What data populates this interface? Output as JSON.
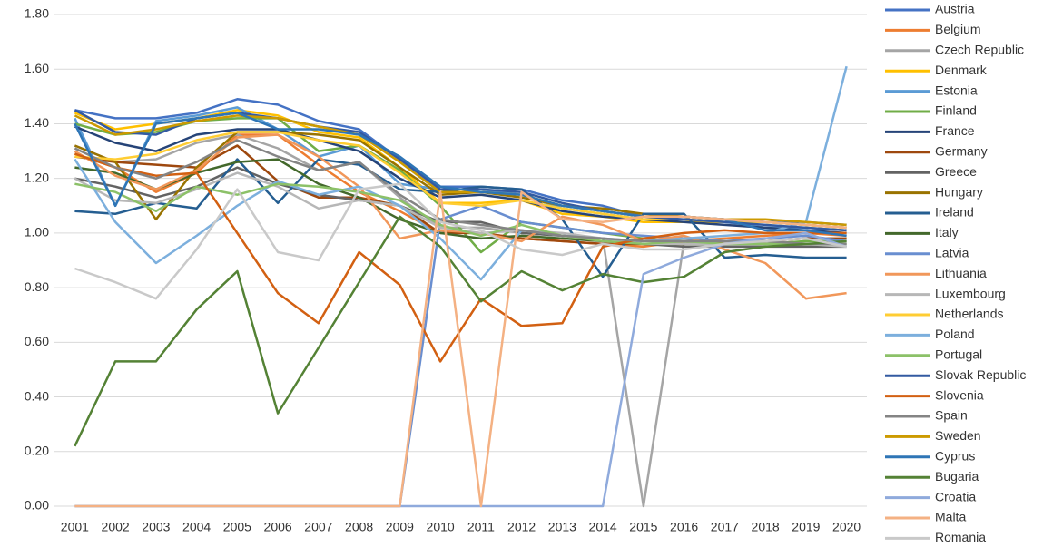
{
  "chart_data": {
    "type": "line",
    "categories": [
      "2001",
      "2002",
      "2003",
      "2004",
      "2005",
      "2006",
      "2007",
      "2008",
      "2009",
      "2010",
      "2011",
      "2012",
      "2013",
      "2014",
      "2015",
      "2016",
      "2017",
      "2018",
      "2019",
      "2020"
    ],
    "ylim": [
      0,
      1.8
    ],
    "yticks": [
      {
        "value": 0,
        "label": "0.00"
      },
      {
        "value": 0.2,
        "label": "0.20"
      },
      {
        "value": 0.4,
        "label": "0.40"
      },
      {
        "value": 0.6,
        "label": "0.60"
      },
      {
        "value": 0.8,
        "label": "0.80"
      },
      {
        "value": 1,
        "label": "1.00"
      },
      {
        "value": 1.2,
        "label": "1.20"
      },
      {
        "value": 1.4,
        "label": "1.40"
      },
      {
        "value": 1.6,
        "label": "1.60"
      },
      {
        "value": 1.8,
        "label": "1.80"
      }
    ],
    "grid": true,
    "legend": "right",
    "series": [
      {
        "name": "Austria",
        "color": "#4472C4",
        "values": [
          1.45,
          1.42,
          1.42,
          1.44,
          1.49,
          1.47,
          1.41,
          1.38,
          1.27,
          1.17,
          1.17,
          1.16,
          1.12,
          1.1,
          1.06,
          1.06,
          1.05,
          1.04,
          1.04,
          1.03
        ]
      },
      {
        "name": "Belgium",
        "color": "#ED7D31",
        "values": [
          1.29,
          1.24,
          1.15,
          1.22,
          1.36,
          1.36,
          1.25,
          1.15,
          1.08,
          1.0,
          1.0,
          0.98,
          0.97,
          0.96,
          0.95,
          0.97,
          0.98,
          0.99,
          1.0,
          0.99
        ]
      },
      {
        "name": "Czech Republic",
        "color": "#A5A5A5",
        "values": [
          1.32,
          1.26,
          1.27,
          1.33,
          1.36,
          1.31,
          1.23,
          1.26,
          1.13,
          1.02,
          1.02,
          1.0,
          0.99,
          0.98,
          0.0,
          0.97,
          0.97,
          0.97,
          0.98,
          0.98
        ]
      },
      {
        "name": "Denmark",
        "color": "#FFC000",
        "values": [
          1.44,
          1.38,
          1.4,
          1.42,
          1.45,
          1.43,
          1.37,
          1.35,
          1.24,
          1.11,
          1.11,
          1.12,
          1.07,
          1.06,
          1.04,
          1.04,
          1.04,
          1.04,
          1.03,
          1.02
        ]
      },
      {
        "name": "Estonia",
        "color": "#5B9BD5",
        "values": [
          1.42,
          1.1,
          1.41,
          1.43,
          1.46,
          1.38,
          1.28,
          1.32,
          1.18,
          1.16,
          1.16,
          1.14,
          1.09,
          1.07,
          1.05,
          1.05,
          1.04,
          1.02,
          1.02,
          1.01
        ]
      },
      {
        "name": "Finland",
        "color": "#70AD47",
        "values": [
          1.4,
          1.36,
          1.37,
          1.41,
          1.42,
          1.42,
          1.3,
          1.32,
          1.23,
          1.1,
          0.93,
          1.04,
          1.02,
          1.0,
          0.98,
          0.97,
          0.96,
          0.96,
          0.97,
          0.97
        ]
      },
      {
        "name": "France",
        "color": "#264478",
        "values": [
          1.39,
          1.33,
          1.3,
          1.36,
          1.38,
          1.38,
          1.34,
          1.3,
          1.2,
          1.13,
          1.14,
          1.12,
          1.08,
          1.06,
          1.05,
          1.04,
          1.03,
          1.02,
          1.01,
          1.0
        ]
      },
      {
        "name": "Germany",
        "color": "#9E480E",
        "values": [
          1.28,
          1.26,
          1.25,
          1.24,
          1.32,
          1.19,
          1.13,
          1.13,
          1.1,
          1.0,
          1.0,
          0.98,
          0.97,
          0.96,
          0.96,
          0.96,
          0.97,
          0.97,
          0.98,
          0.98
        ]
      },
      {
        "name": "Greece",
        "color": "#636363",
        "values": [
          1.2,
          1.17,
          1.13,
          1.17,
          1.24,
          1.18,
          1.14,
          1.12,
          1.1,
          1.04,
          1.04,
          1.0,
          0.99,
          0.98,
          0.96,
          0.95,
          0.95,
          0.95,
          0.95,
          0.95
        ]
      },
      {
        "name": "Hungary",
        "color": "#997300",
        "values": [
          1.32,
          1.26,
          1.05,
          1.24,
          1.37,
          1.37,
          1.36,
          1.34,
          1.24,
          1.14,
          1.15,
          1.13,
          1.1,
          1.09,
          1.07,
          1.06,
          1.05,
          1.04,
          1.03,
          1.02
        ]
      },
      {
        "name": "Ireland",
        "color": "#255E91",
        "values": [
          1.08,
          1.07,
          1.11,
          1.09,
          1.27,
          1.11,
          1.27,
          1.25,
          1.16,
          1.15,
          1.17,
          1.16,
          1.05,
          0.84,
          1.07,
          1.07,
          0.91,
          0.92,
          0.91,
          0.91
        ]
      },
      {
        "name": "Italy",
        "color": "#43682B",
        "values": [
          1.24,
          1.22,
          1.16,
          1.22,
          1.26,
          1.27,
          1.18,
          1.13,
          1.05,
          1.0,
          0.98,
          0.99,
          0.98,
          0.97,
          0.96,
          0.96,
          0.96,
          0.96,
          0.96,
          0.96
        ]
      },
      {
        "name": "Latvia",
        "color": "#698ED0",
        "values": [
          0,
          0,
          0,
          0,
          0,
          0,
          0,
          0,
          0,
          1.05,
          1.1,
          1.04,
          1.02,
          1.0,
          0.99,
          0.98,
          0.97,
          0.98,
          0.99,
          0.97
        ]
      },
      {
        "name": "Lithuania",
        "color": "#F1975A",
        "values": [
          1.3,
          1.21,
          1.16,
          1.23,
          1.35,
          1.36,
          1.28,
          1.17,
          0.98,
          1.01,
          1.0,
          0.97,
          1.06,
          1.03,
          0.97,
          0.99,
          0.94,
          0.89,
          0.76,
          0.78
        ]
      },
      {
        "name": "Luxembourg",
        "color": "#B7B7B7",
        "values": [
          1.2,
          1.12,
          1.11,
          1.16,
          1.22,
          1.17,
          1.09,
          1.12,
          1.1,
          1.02,
          1.0,
          1.01,
          1.0,
          0.98,
          0.96,
          0.96,
          0.96,
          0.96,
          0.96,
          0.95
        ]
      },
      {
        "name": "Netherlands",
        "color": "#FFCD33",
        "values": [
          1.28,
          1.27,
          1.29,
          1.34,
          1.37,
          1.37,
          1.34,
          1.32,
          1.22,
          1.11,
          1.1,
          1.12,
          1.09,
          1.07,
          1.05,
          1.05,
          1.04,
          1.04,
          1.03,
          1.02
        ]
      },
      {
        "name": "Poland",
        "color": "#7CAFDD",
        "values": [
          1.27,
          1.04,
          0.89,
          0.99,
          1.1,
          1.19,
          1.14,
          1.17,
          1.1,
          0.98,
          0.83,
          1.01,
          0.99,
          0.98,
          0.97,
          0.98,
          0.99,
          1.0,
          1.04,
          1.61
        ]
      },
      {
        "name": "Portugal",
        "color": "#8CC168",
        "values": [
          1.18,
          1.15,
          1.08,
          1.17,
          1.14,
          1.18,
          1.17,
          1.15,
          1.12,
          1.03,
          0.99,
          1.03,
          0.99,
          0.97,
          0.96,
          0.97,
          0.96,
          0.96,
          0.96,
          0.96
        ]
      },
      {
        "name": "Slovak Republic",
        "color": "#335AA1",
        "values": [
          1.45,
          1.37,
          1.36,
          1.42,
          1.44,
          1.42,
          1.39,
          1.37,
          1.27,
          1.16,
          1.16,
          1.15,
          1.11,
          1.08,
          1.06,
          1.05,
          1.04,
          1.03,
          1.02,
          1.01
        ]
      },
      {
        "name": "Slovenia",
        "color": "#D26012",
        "values": [
          1.29,
          1.24,
          1.21,
          1.22,
          1.0,
          0.78,
          0.67,
          0.93,
          0.81,
          0.53,
          0.76,
          0.66,
          0.67,
          0.95,
          0.98,
          1.0,
          1.01,
          1.0,
          1.0,
          1.0
        ]
      },
      {
        "name": "Spain",
        "color": "#848484",
        "values": [
          1.31,
          1.24,
          1.2,
          1.26,
          1.34,
          1.28,
          1.23,
          1.26,
          1.14,
          1.05,
          1.03,
          1.01,
          0.99,
          0.98,
          0.97,
          0.97,
          0.97,
          0.97,
          0.96,
          0.96
        ]
      },
      {
        "name": "Sweden",
        "color": "#CC9A00",
        "values": [
          1.43,
          1.36,
          1.38,
          1.41,
          1.43,
          1.42,
          1.39,
          1.36,
          1.26,
          1.15,
          1.15,
          1.14,
          1.1,
          1.08,
          1.06,
          1.06,
          1.05,
          1.05,
          1.04,
          1.03
        ]
      },
      {
        "name": "Cyprus",
        "color": "#2E75B6",
        "values": [
          1.4,
          1.1,
          1.4,
          1.42,
          1.44,
          1.38,
          1.38,
          1.36,
          1.28,
          1.17,
          1.15,
          1.14,
          1.1,
          1.08,
          1.06,
          1.06,
          1.05,
          1.01,
          1.01,
          0.99
        ]
      },
      {
        "name": "Bugaria",
        "color": "#548235",
        "values": [
          0.22,
          0.53,
          0.53,
          0.72,
          0.86,
          0.34,
          0.58,
          0.82,
          1.06,
          0.95,
          0.75,
          0.86,
          0.79,
          0.85,
          0.82,
          0.84,
          0.93,
          0.95,
          0.96,
          0.97
        ]
      },
      {
        "name": "Croatia",
        "color": "#8FAADC",
        "values": [
          0,
          0,
          0,
          0,
          0,
          0,
          0,
          0,
          0,
          0,
          0,
          0,
          0,
          0,
          0.85,
          0.91,
          0.96,
          0.98,
          1.0,
          0.95
        ]
      },
      {
        "name": "Malta",
        "color": "#F4B183",
        "values": [
          0,
          0,
          0,
          0,
          0,
          0,
          0,
          0,
          0,
          1.15,
          0,
          1.15,
          1.05,
          1.04,
          1.06,
          1.06,
          1.05,
          1.04,
          1.03,
          1.02
        ]
      },
      {
        "name": "Romania",
        "color": "#C9C9C9",
        "values": [
          0.87,
          0.82,
          0.76,
          0.94,
          1.16,
          0.93,
          0.9,
          1.16,
          1.18,
          1.04,
          1.01,
          0.94,
          0.92,
          0.96,
          0.94,
          0.94,
          0.96,
          0.97,
          0.98,
          0.95
        ]
      }
    ]
  }
}
